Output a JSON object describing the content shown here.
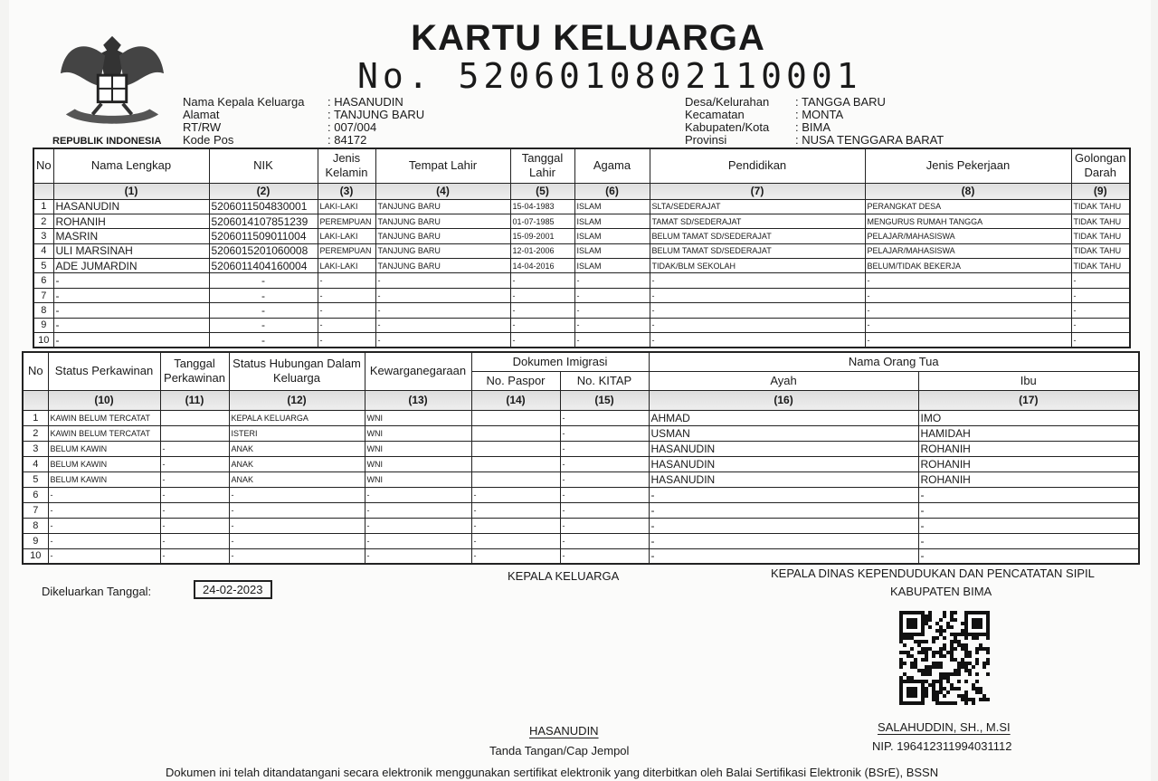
{
  "emblem_caption": "REPUBLIK INDONESIA",
  "title": "KARTU KELUARGA",
  "number_prefix": "No.",
  "number": "5206010802110001",
  "head_info": [
    {
      "label": "Nama Kepala Keluarga",
      "value": ": HASANUDIN"
    },
    {
      "label": "Alamat",
      "value": ": TANJUNG BARU"
    },
    {
      "label": "RT/RW",
      "value": ": 007/004"
    },
    {
      "label": "Kode Pos",
      "value": ": 84172"
    }
  ],
  "region_info": [
    {
      "label": "Desa/Kelurahan",
      "value": ": TANGGA BARU"
    },
    {
      "label": "Kecamatan",
      "value": ": MONTA"
    },
    {
      "label": "Kabupaten/Kota",
      "value": ": BIMA"
    },
    {
      "label": "Provinsi",
      "value": ": NUSA TENGGARA BARAT"
    }
  ],
  "table1": {
    "headers": [
      "No",
      "Nama Lengkap",
      "NIK",
      "Jenis Kelamin",
      "Tempat Lahir",
      "Tanggal Lahir",
      "Agama",
      "Pendidikan",
      "Jenis Pekerjaan",
      "Golongan Darah"
    ],
    "numbers": [
      "",
      "(1)",
      "(2)",
      "(3)",
      "(4)",
      "(5)",
      "(6)",
      "(7)",
      "(8)",
      "(9)"
    ],
    "rows": [
      [
        "1",
        "HASANUDIN",
        "5206011504830001",
        "LAKI-LAKI",
        "TANJUNG BARU",
        "15-04-1983",
        "ISLAM",
        "SLTA/SEDERAJAT",
        "PERANGKAT DESA",
        "TIDAK TAHU"
      ],
      [
        "2",
        "ROHANIH",
        "5206014107851239",
        "PEREMPUAN",
        "TANJUNG BARU",
        "01-07-1985",
        "ISLAM",
        "TAMAT SD/SEDERAJAT",
        "MENGURUS RUMAH TANGGA",
        "TIDAK TAHU"
      ],
      [
        "3",
        "MASRIN",
        "5206011509011004",
        "LAKI-LAKI",
        "TANJUNG BARU",
        "15-09-2001",
        "ISLAM",
        "BELUM TAMAT SD/SEDERAJAT",
        "PELAJAR/MAHASISWA",
        "TIDAK TAHU"
      ],
      [
        "4",
        "ULI MARSINAH",
        "5206015201060008",
        "PEREMPUAN",
        "TANJUNG BARU",
        "12-01-2006",
        "ISLAM",
        "BELUM TAMAT SD/SEDERAJAT",
        "PELAJAR/MAHASISWA",
        "TIDAK TAHU"
      ],
      [
        "5",
        "ADE JUMARDIN",
        "5206011404160004",
        "LAKI-LAKI",
        "TANJUNG BARU",
        "14-04-2016",
        "ISLAM",
        "TIDAK/BLM SEKOLAH",
        "BELUM/TIDAK BEKERJA",
        "TIDAK TAHU"
      ],
      [
        "6",
        "-",
        "-",
        "-",
        "-",
        "-",
        "-",
        "-",
        "-",
        "-"
      ],
      [
        "7",
        "-",
        "-",
        "-",
        "-",
        "-",
        "-",
        "-",
        "-",
        "-"
      ],
      [
        "8",
        "-",
        "-",
        "-",
        "-",
        "-",
        "-",
        "-",
        "-",
        "-"
      ],
      [
        "9",
        "-",
        "-",
        "-",
        "-",
        "-",
        "-",
        "-",
        "-",
        "-"
      ],
      [
        "10",
        "-",
        "-",
        "-",
        "-",
        "-",
        "-",
        "-",
        "-",
        "-"
      ]
    ]
  },
  "table2": {
    "headers": {
      "no": "No",
      "status": "Status Perkawinan",
      "tanggal": "Tanggal Perkawinan",
      "hubungan": "Status Hubungan Dalam Keluarga",
      "kewarganegaraan": "Kewarganegaraan",
      "dokumen": "Dokumen Imigrasi",
      "paspor": "No. Paspor",
      "kitap": "No. KITAP",
      "orang_tua": "Nama Orang Tua",
      "ayah": "Ayah",
      "ibu": "Ibu"
    },
    "numbers": [
      "",
      "(10)",
      "(11)",
      "(12)",
      "(13)",
      "(14)",
      "(15)",
      "(16)",
      "(17)"
    ],
    "rows": [
      [
        "1",
        "KAWIN BELUM TERCATAT",
        "",
        "KEPALA KELUARGA",
        "WNI",
        "",
        "-",
        "AHMAD",
        "IMO"
      ],
      [
        "2",
        "KAWIN BELUM TERCATAT",
        "",
        "ISTERI",
        "WNI",
        "",
        "-",
        "USMAN",
        "HAMIDAH"
      ],
      [
        "3",
        "BELUM KAWIN",
        "-",
        "ANAK",
        "WNI",
        "",
        "-",
        "HASANUDIN",
        "ROHANIH"
      ],
      [
        "4",
        "BELUM KAWIN",
        "-",
        "ANAK",
        "WNI",
        "",
        "-",
        "HASANUDIN",
        "ROHANIH"
      ],
      [
        "5",
        "BELUM KAWIN",
        "-",
        "ANAK",
        "WNI",
        "",
        "-",
        "HASANUDIN",
        "ROHANIH"
      ],
      [
        "6",
        "-",
        "-",
        "-",
        "-",
        "-",
        "-",
        "-",
        "-"
      ],
      [
        "7",
        "-",
        "-",
        "-",
        "-",
        "-",
        "-",
        "-",
        "-"
      ],
      [
        "8",
        "-",
        "-",
        "-",
        "-",
        "-",
        "-",
        "-",
        "-"
      ],
      [
        "9",
        "-",
        "-",
        "-",
        "-",
        "-",
        "-",
        "-",
        "-"
      ],
      [
        "10",
        "-",
        "-",
        "-",
        "-",
        "-",
        "-",
        "-",
        "-"
      ]
    ]
  },
  "footer": {
    "issued_label": "Dikeluarkan Tanggal:",
    "issued_date": "24-02-2023",
    "head_title": "KEPALA KELUARGA",
    "head_name": "HASANUDIN",
    "head_caption": "Tanda Tangan/Cap Jempol",
    "official_title": "KEPALA DINAS KEPENDUDUKAN DAN PENCATATAN SIPIL",
    "official_region": "KABUPATEN BIMA",
    "official_name": "SALAHUDDIN, SH., M.SI",
    "official_nip": "NIP. 196412311994031112",
    "notice": "Dokumen ini telah ditandatangani secara elektronik menggunakan sertifikat elektronik yang diterbitkan oleh Balai Sertifikasi Elektronik (BSrE), BSSN"
  }
}
